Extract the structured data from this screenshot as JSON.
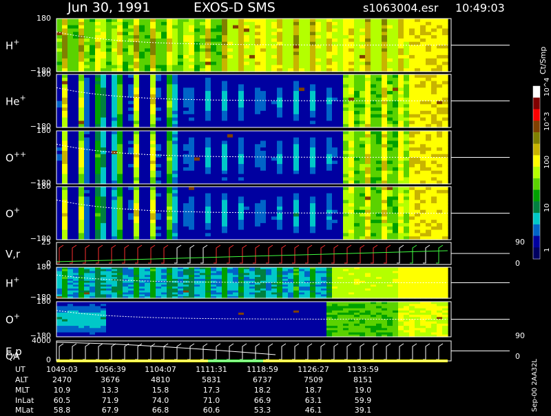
{
  "header": {
    "date": "Jun 30, 1991",
    "instrument": "EXOS-D SMS",
    "file": "s1063004.esr",
    "time": "10:49:03"
  },
  "colorbar": {
    "unit_label": "Ct/Smp",
    "tick_labels": [
      "10^4",
      "10^3",
      "100",
      "10",
      "1"
    ],
    "colors": [
      "#ffffff",
      "#800000",
      "#ff0000",
      "#804000",
      "#808000",
      "#c8b400",
      "#ffff00",
      "#b4ff00",
      "#5ad200",
      "#00a000",
      "#008040",
      "#00c8c8",
      "#0064c8",
      "#0000a0",
      "#000060"
    ]
  },
  "panels": [
    {
      "label": "H+",
      "species": "H",
      "charge": "+",
      "ytop": "180",
      "ybot": "−180"
    },
    {
      "label": "He+",
      "species": "He",
      "charge": "+",
      "ytop": "180",
      "ybot": "−180"
    },
    {
      "label": "O++",
      "species": "O",
      "charge": "++",
      "ytop": "180",
      "ybot": "−180"
    },
    {
      "label": "O+",
      "species": "O",
      "charge": "+",
      "ytop": "180",
      "ybot": "−180"
    },
    {
      "label": "V,r",
      "species": "V,r",
      "charge": "",
      "ytop": "25",
      "ybot": "0",
      "rtop": "90",
      "rbot": "0"
    },
    {
      "label": "H+",
      "species": "H",
      "charge": "+",
      "ytop": "180",
      "ybot": "−180"
    },
    {
      "label": "O+",
      "species": "O",
      "charge": "+",
      "ytop": "180",
      "ybot": "−180",
      "rbot": "90"
    },
    {
      "label": "E,p",
      "species": "E,p",
      "charge": "",
      "ytop": "4000",
      "ybot": "0",
      "extra": "QA",
      "rbot": "0"
    }
  ],
  "footer": {
    "rows": [
      {
        "label": "UT",
        "values": [
          "1049:03",
          "1056:39",
          "1104:07",
          "1111:31",
          "1118:59",
          "1126:27",
          "1133:59"
        ]
      },
      {
        "label": "ALT",
        "values": [
          "2470",
          "3676",
          "4810",
          "5831",
          "6737",
          "7509",
          "8151"
        ]
      },
      {
        "label": "MLT",
        "values": [
          "10.9",
          "13.3",
          "15.8",
          "17.3",
          "18.2",
          "18.7",
          "19.0"
        ]
      },
      {
        "label": "InLat",
        "values": [
          "60.5",
          "71.9",
          "74.0",
          "71.0",
          "66.9",
          "63.1",
          "59.9"
        ]
      },
      {
        "label": "MLat",
        "values": [
          "58.8",
          "67.9",
          "66.8",
          "60.6",
          "53.3",
          "46.1",
          "39.1"
        ]
      }
    ],
    "version": "Sep-00  2AA32L"
  },
  "chart_data": {
    "type": "heatmap",
    "title": "Jun 30, 1991   EXOS-D SMS",
    "x_label": "UT",
    "x_ticks": [
      "1049:03",
      "1056:39",
      "1104:07",
      "1111:31",
      "1118:59",
      "1126:27",
      "1133:59"
    ],
    "color_scale": "log",
    "color_range": [
      1,
      10000
    ],
    "color_unit": "Ct/Smp",
    "ion_panels": [
      {
        "species": "H+",
        "y_range": [
          -180,
          180
        ],
        "peak_counts": 1000
      },
      {
        "species": "He+",
        "y_range": [
          -180,
          180
        ],
        "peak_counts": 100
      },
      {
        "species": "O++",
        "y_range": [
          -180,
          180
        ],
        "peak_counts": 100
      },
      {
        "species": "O+",
        "y_range": [
          -180,
          180
        ],
        "peak_counts": 100
      },
      {
        "species": "H+",
        "y_range": [
          -180,
          180
        ],
        "peak_counts": 100
      },
      {
        "species": "O+",
        "y_range": [
          -180,
          180
        ],
        "peak_counts": 100
      }
    ],
    "line_panels": [
      {
        "name": "V,r",
        "y_range": [
          0,
          25
        ],
        "right_range": [
          0,
          90
        ]
      },
      {
        "name": "E,p",
        "y_range": [
          0,
          4000
        ],
        "right_range": [
          0,
          90
        ]
      }
    ]
  }
}
